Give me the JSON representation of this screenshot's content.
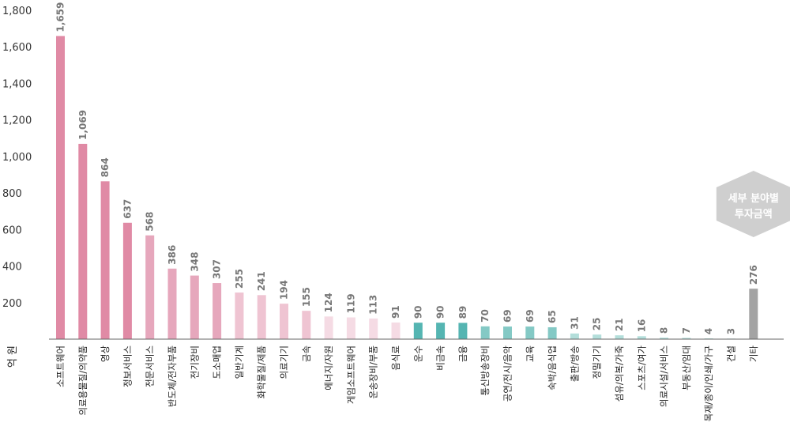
{
  "unit_label": "억 원",
  "badge": {
    "line1": "세부 분야별",
    "line2": "투자금액"
  },
  "colors": {
    "pink_dark": "#e08aa5",
    "pink_mid": "#e6a7bc",
    "pink_light": "#efc4d2",
    "pink_pale": "#f5dbe4",
    "teal_dark": "#55b5b2",
    "teal_mid": "#84c9c5",
    "teal_light": "#b3deda",
    "gray": "#a3a3a3",
    "badge": "#cfcfcf",
    "axis": "#666666"
  },
  "chart_data": {
    "type": "bar",
    "ylim": [
      0,
      1800
    ],
    "yticks": [
      "200",
      "400",
      "600",
      "800",
      "1,000",
      "1,200",
      "1,400",
      "1,600",
      "1,800"
    ],
    "ytick_values": [
      200,
      400,
      600,
      800,
      1000,
      1200,
      1400,
      1600,
      1800
    ],
    "grid": false,
    "categories": [
      "소프트웨어",
      "의료용물질/의약품",
      "영상",
      "정보서비스",
      "전문서비스",
      "반도체/전자부품",
      "전기장비",
      "도소매업",
      "일반기계",
      "화학물질/제품",
      "의료기기",
      "금속",
      "에너지/자원",
      "게임소프트웨어",
      "운송장비/부품",
      "음식료",
      "운수",
      "비금속",
      "금융",
      "통신방송장비",
      "공연/전시/음악",
      "교육",
      "숙박/음식업",
      "출판/방송",
      "정밀기기",
      "섬유/의복/가죽",
      "스포츠/여가",
      "의료시설/서비스",
      "부동산/임대",
      "목재/종이/인쇄/가구",
      "건설",
      "기타"
    ],
    "values": [
      1659,
      1069,
      864,
      637,
      568,
      386,
      348,
      307,
      255,
      241,
      194,
      155,
      124,
      119,
      113,
      91,
      90,
      90,
      89,
      70,
      69,
      69,
      65,
      31,
      25,
      21,
      16,
      8,
      7,
      4,
      3,
      276
    ],
    "value_labels": [
      "1,659",
      "1,069",
      "864",
      "637",
      "568",
      "386",
      "348",
      "307",
      "255",
      "241",
      "194",
      "155",
      "124",
      "119",
      "113",
      "91",
      "90",
      "90",
      "89",
      "70",
      "69",
      "69",
      "65",
      "31",
      "25",
      "21",
      "16",
      "8",
      "7",
      "4",
      "3",
      "276"
    ],
    "bar_colors": [
      "pink_dark",
      "pink_dark",
      "pink_dark",
      "pink_dark",
      "pink_mid",
      "pink_mid",
      "pink_mid",
      "pink_mid",
      "pink_light",
      "pink_light",
      "pink_light",
      "pink_light",
      "pink_pale",
      "pink_pale",
      "pink_pale",
      "pink_pale",
      "teal_dark",
      "teal_dark",
      "teal_dark",
      "teal_mid",
      "teal_mid",
      "teal_mid",
      "teal_mid",
      "teal_light",
      "teal_light",
      "teal_light",
      "teal_light",
      "teal_light",
      "teal_light",
      "teal_light",
      "teal_light",
      "gray"
    ]
  }
}
